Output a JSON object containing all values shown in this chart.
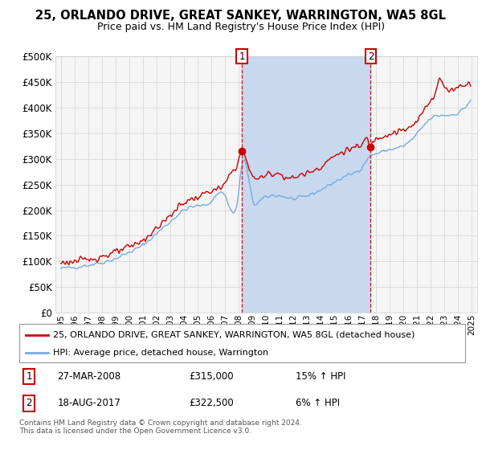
{
  "title": "25, ORLANDO DRIVE, GREAT SANKEY, WARRINGTON, WA5 8GL",
  "subtitle": "Price paid vs. HM Land Registry's House Price Index (HPI)",
  "legend_line1": "25, ORLANDO DRIVE, GREAT SANKEY, WARRINGTON, WA5 8GL (detached house)",
  "legend_line2": "HPI: Average price, detached house, Warrington",
  "annotation1_date": "27-MAR-2008",
  "annotation1_price": "£315,000",
  "annotation1_hpi": "15% ↑ HPI",
  "annotation2_date": "18-AUG-2017",
  "annotation2_price": "£322,500",
  "annotation2_hpi": "6% ↑ HPI",
  "copyright": "Contains HM Land Registry data © Crown copyright and database right 2024.\nThis data is licensed under the Open Government Licence v3.0.",
  "red_color": "#cc0000",
  "blue_color": "#7aaadd",
  "blue_fill_color": "#c8d8ee",
  "annotation_color": "#cc0000",
  "plot_bg": "#f5f5f5",
  "grid_color": "#dddddd",
  "sale1_x": 2008.22,
  "sale2_x": 2017.62,
  "sale1_y": 315000,
  "sale2_y": 322500,
  "ylim": [
    0,
    500000
  ],
  "yticks": [
    0,
    50000,
    100000,
    150000,
    200000,
    250000,
    300000,
    350000,
    400000,
    450000,
    500000
  ],
  "xlim_min": 1994.6,
  "xlim_max": 2025.4
}
